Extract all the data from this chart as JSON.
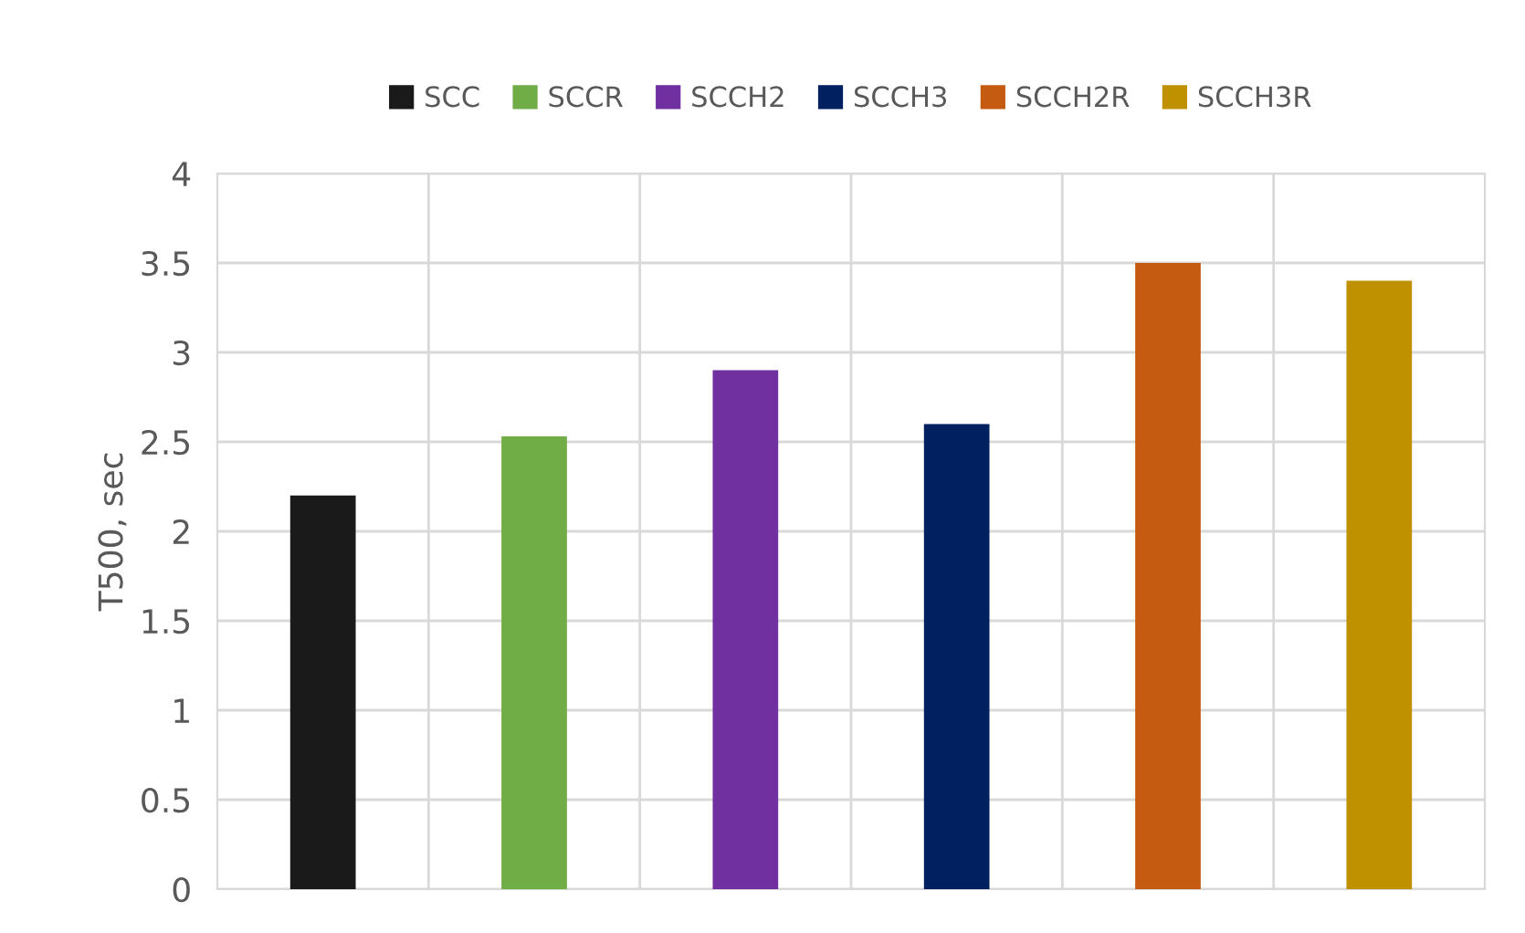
{
  "chart_data": {
    "type": "bar",
    "ylabel": "T500, sec",
    "categories": [
      null,
      null,
      null,
      null,
      null,
      null
    ],
    "series": [
      {
        "name": "SCC",
        "color": "#1a1a1a",
        "values": [
          2.2,
          null,
          null,
          null,
          null,
          null
        ]
      },
      {
        "name": "SCCR",
        "color": "#70ad47",
        "values": [
          null,
          2.53,
          null,
          null,
          null,
          null
        ]
      },
      {
        "name": "SCCH2",
        "color": "#7030a0",
        "values": [
          null,
          null,
          2.9,
          null,
          null,
          null
        ]
      },
      {
        "name": "SCCH3",
        "color": "#002060",
        "values": [
          null,
          null,
          null,
          2.6,
          null,
          null
        ]
      },
      {
        "name": "SCCH2R",
        "color": "#c55a11",
        "values": [
          null,
          null,
          null,
          null,
          3.5,
          null
        ]
      },
      {
        "name": "SCCH3R",
        "color": "#bf9000",
        "values": [
          null,
          null,
          null,
          null,
          null,
          3.4
        ]
      }
    ],
    "ylim": [
      0,
      4
    ],
    "yticks": [
      0,
      0.5,
      1,
      1.5,
      2,
      2.5,
      3,
      3.5,
      4
    ],
    "grid": true,
    "legend": "top"
  }
}
